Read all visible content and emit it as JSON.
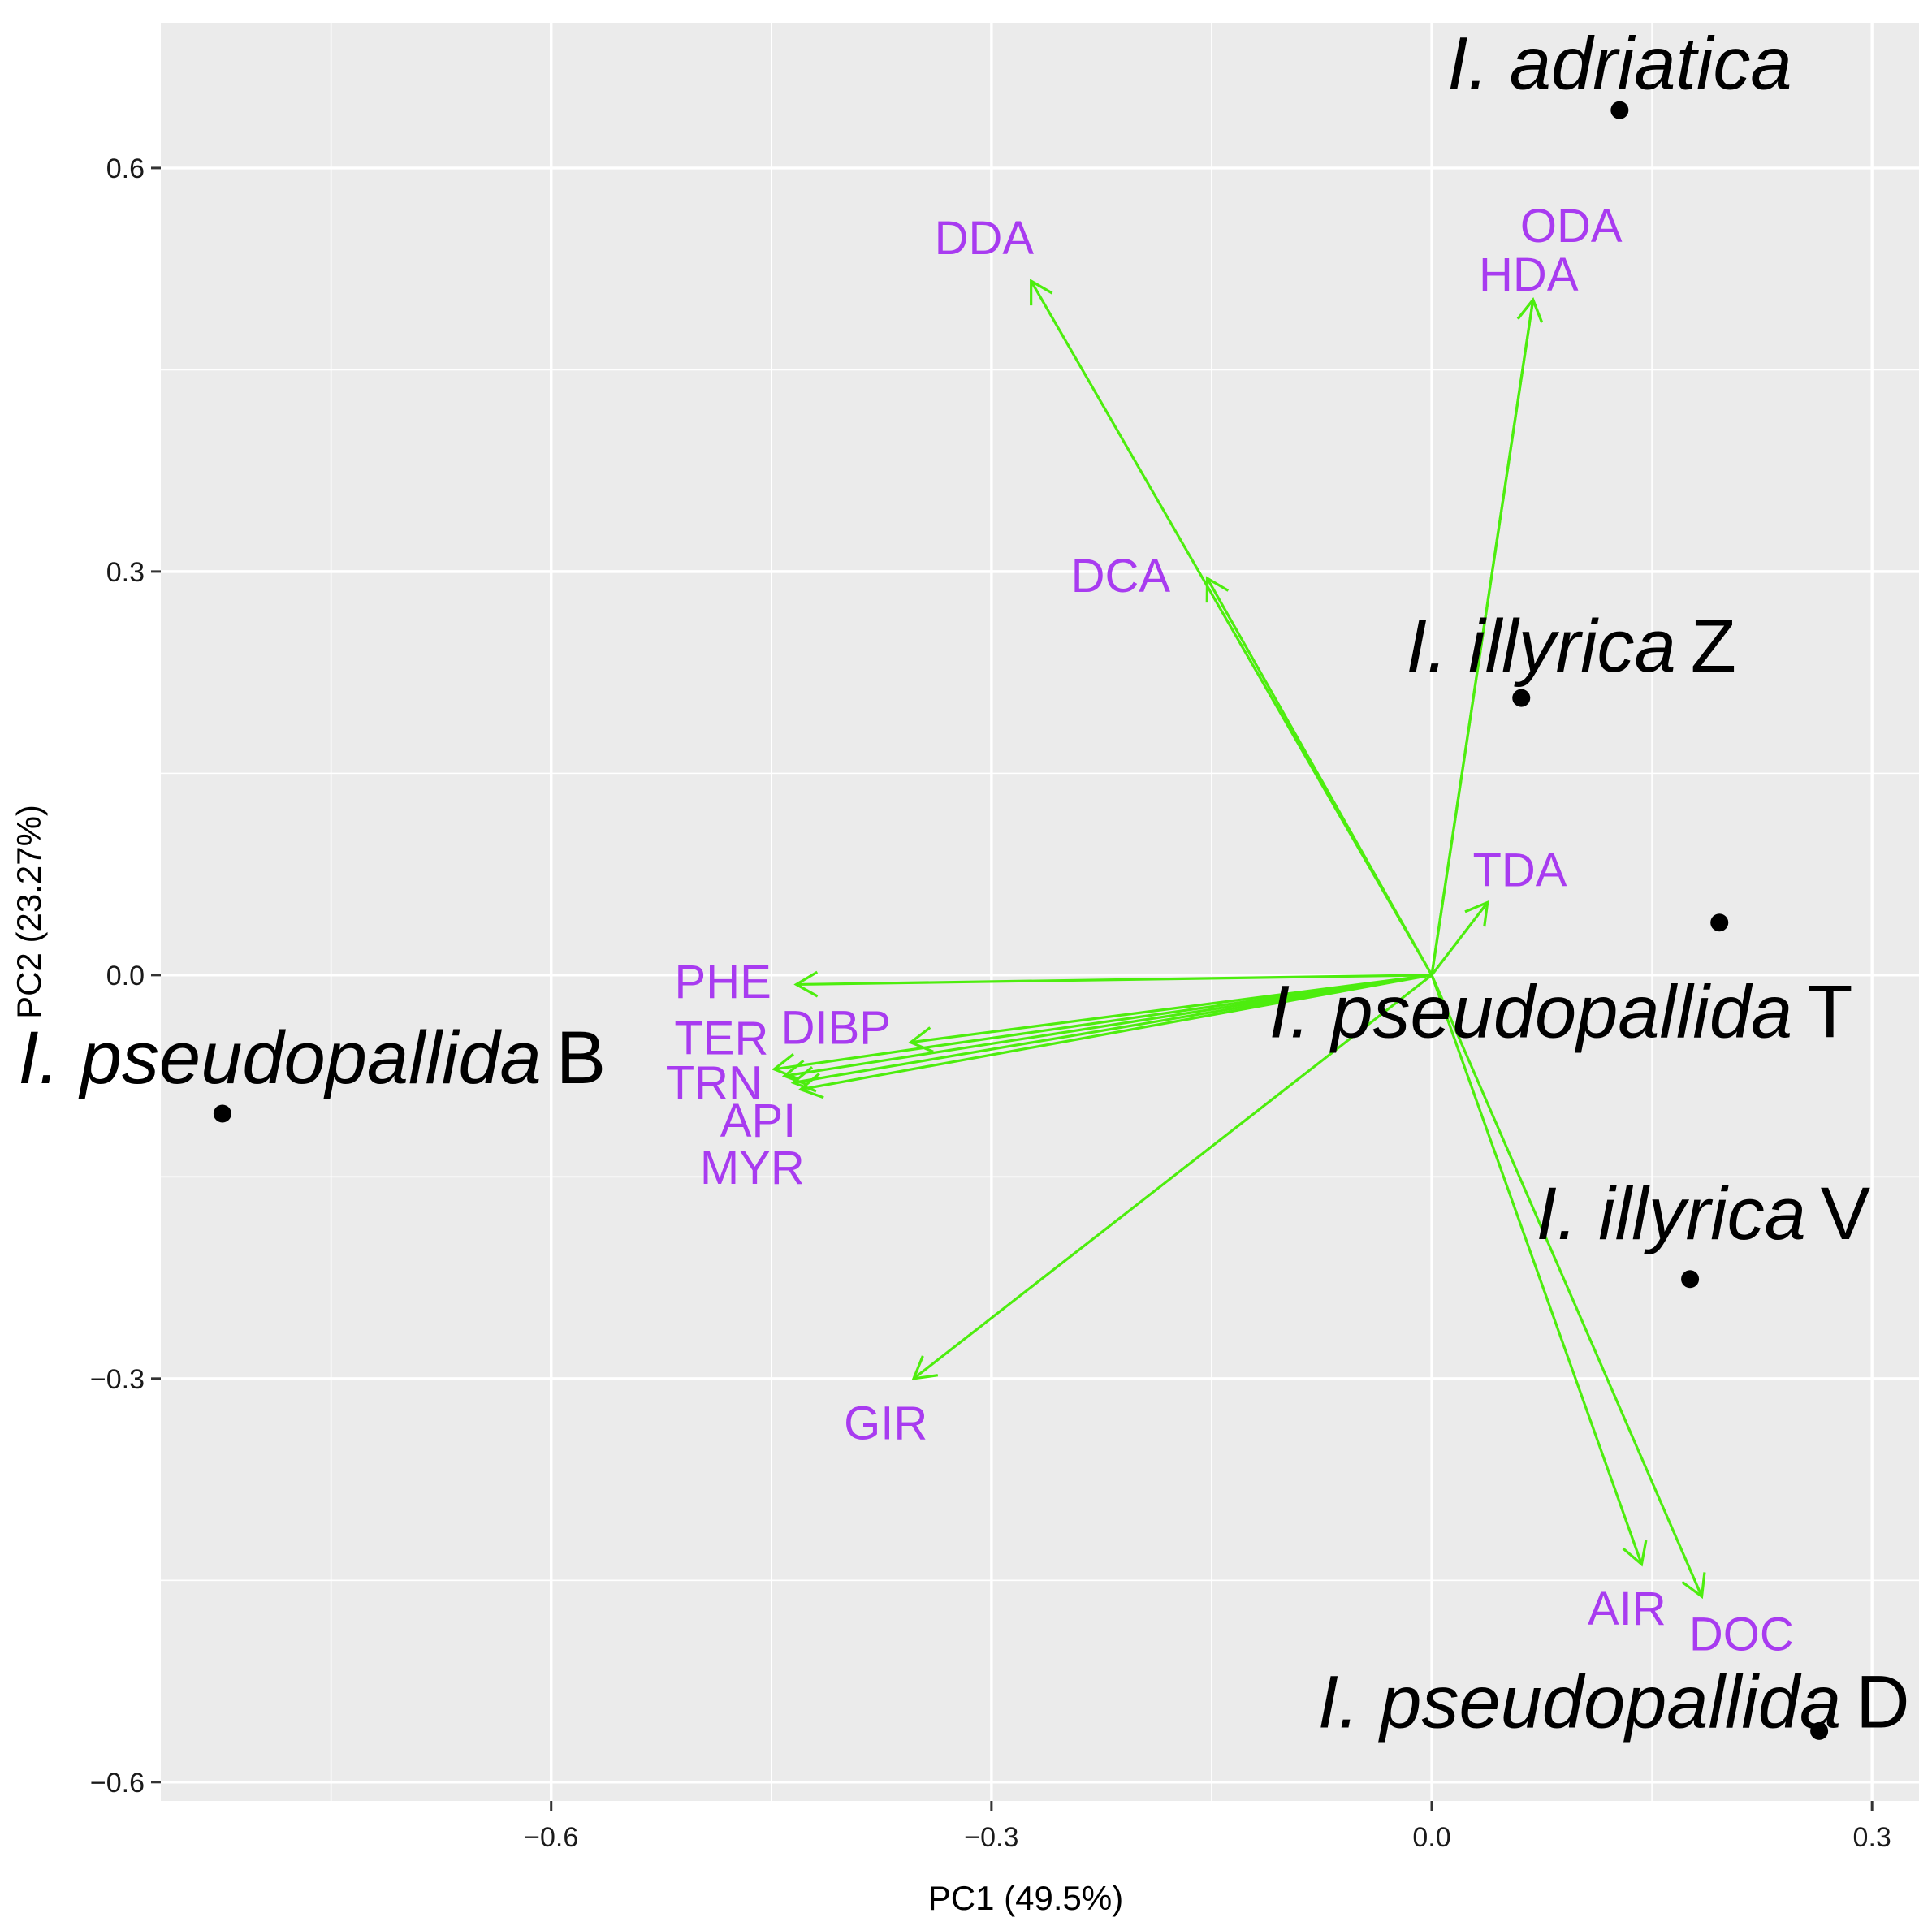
{
  "chart_data": {
    "type": "scatter",
    "subtype": "pca-biplot",
    "xlabel": "PC1 (49.5%)",
    "ylabel": "PC2 (23.27%)",
    "xlim": [
      -0.866,
      0.332
    ],
    "ylim": [
      -0.614,
      0.708
    ],
    "x_ticks": [
      -0.6,
      -0.3,
      0.0,
      0.3
    ],
    "y_ticks": [
      -0.6,
      -0.3,
      0.0,
      0.3,
      0.6
    ],
    "x_tick_labels": [
      "−0.6",
      "−0.3",
      "0.0",
      "0.3"
    ],
    "y_tick_labels": [
      "−0.6",
      "−0.3",
      "0.0",
      "0.3",
      "0.6"
    ],
    "grid": true,
    "points": [
      {
        "x": 0.128,
        "y": 0.643
      },
      {
        "x": 0.061,
        "y": 0.206
      },
      {
        "x": 0.196,
        "y": 0.039
      },
      {
        "x": -0.824,
        "y": -0.103
      },
      {
        "x": 0.176,
        "y": -0.226
      },
      {
        "x": 0.264,
        "y": -0.562
      }
    ],
    "species_labels": [
      {
        "italic": "I. adriatica",
        "suffix": "",
        "x": 0.128,
        "y": 0.678
      },
      {
        "italic": "I. illyrica",
        "suffix": "Z",
        "x": 0.095,
        "y": 0.245
      },
      {
        "italic": "I. pseudopallida",
        "suffix": "T",
        "x": 0.088,
        "y": -0.027
      },
      {
        "italic": "I. pseudopallida",
        "suffix": "B",
        "x": -0.763,
        "y": -0.061
      },
      {
        "italic": "I. illyrica",
        "suffix": "V",
        "x": 0.185,
        "y": -0.177
      },
      {
        "italic": "I. pseudopallida",
        "suffix": "D",
        "x": 0.124,
        "y": -0.54
      }
    ],
    "loadings": [
      {
        "name": "DDA",
        "x": -0.273,
        "y": 0.516,
        "label_x": -0.305,
        "label_y": 0.548
      },
      {
        "name": "HDA",
        "x": 0.069,
        "y": 0.502,
        "label_x": 0.066,
        "label_y": 0.521
      },
      {
        "name": "ODA",
        "x": 0.069,
        "y": 0.502,
        "label_x": 0.095,
        "label_y": 0.557
      },
      {
        "name": "DCA",
        "x": -0.153,
        "y": 0.295,
        "label_x": -0.212,
        "label_y": 0.297
      },
      {
        "name": "TDA",
        "x": 0.038,
        "y": 0.054,
        "label_x": 0.06,
        "label_y": 0.078
      },
      {
        "name": "PHE",
        "x": -0.433,
        "y": -0.007,
        "label_x": -0.483,
        "label_y": -0.005
      },
      {
        "name": "DIBP",
        "x": -0.355,
        "y": -0.05,
        "label_x": -0.406,
        "label_y": -0.039
      },
      {
        "name": "TER",
        "x": -0.448,
        "y": -0.07,
        "label_x": -0.484,
        "label_y": -0.047
      },
      {
        "name": "TRN",
        "x": -0.441,
        "y": -0.075,
        "label_x": -0.489,
        "label_y": -0.08
      },
      {
        "name": "API",
        "x": -0.435,
        "y": -0.08,
        "label_x": -0.459,
        "label_y": -0.108
      },
      {
        "name": "MYR",
        "x": -0.43,
        "y": -0.085,
        "label_x": -0.463,
        "label_y": -0.143
      },
      {
        "name": "GIR",
        "x": -0.353,
        "y": -0.3,
        "label_x": -0.372,
        "label_y": -0.333
      },
      {
        "name": "AIR",
        "x": 0.143,
        "y": -0.438,
        "label_x": 0.133,
        "label_y": -0.471
      },
      {
        "name": "DOC",
        "x": 0.184,
        "y": -0.462,
        "label_x": 0.211,
        "label_y": -0.49
      }
    ],
    "colors": {
      "panel": "#ebebeb",
      "grid_major": "#ffffff",
      "arrow": "#4ded0e",
      "variable_label": "#a83bf0",
      "point": "#000000"
    }
  }
}
